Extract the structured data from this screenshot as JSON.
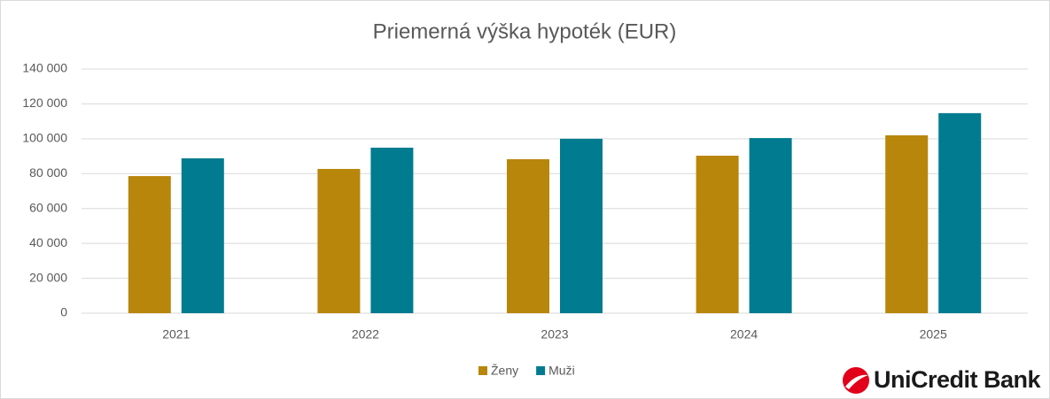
{
  "chart_data": {
    "type": "bar",
    "title": "Priemerná výška hypoték (EUR)",
    "categories": [
      "2021",
      "2022",
      "2023",
      "2024",
      "2025"
    ],
    "series": [
      {
        "name": "Ženy",
        "color": "#B8860B",
        "values": [
          78600,
          82700,
          88300,
          90300,
          102000
        ]
      },
      {
        "name": "Muži",
        "color": "#007B8F",
        "values": [
          88800,
          94900,
          100000,
          100400,
          114700
        ]
      }
    ],
    "ylim": [
      0,
      140000
    ],
    "yticks": [
      0,
      {
        "value": 20000,
        "label": "20 000"
      },
      {
        "value": 40000,
        "label": "40 000"
      },
      {
        "value": 60000,
        "label": "60 000"
      },
      {
        "value": 80000,
        "label": "80 000"
      },
      {
        "value": 100000,
        "label": "100 000"
      },
      {
        "value": 120000,
        "label": "120 000"
      },
      {
        "value": 140000,
        "label": "140 000"
      }
    ],
    "grid": true,
    "legend": "bottom"
  },
  "brand": "UniCredit Bank"
}
